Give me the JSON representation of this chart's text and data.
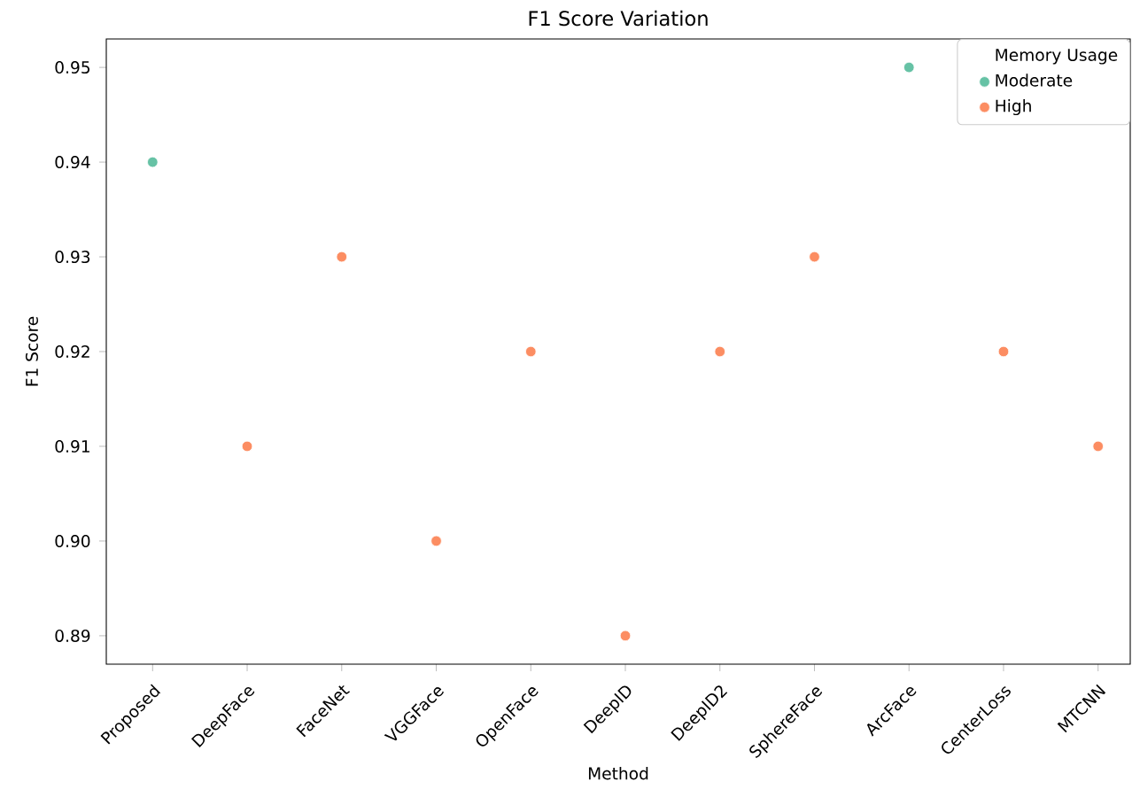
{
  "chart_data": {
    "type": "scatter",
    "title": "F1 Score Variation",
    "xlabel": "Method",
    "ylabel": "F1 Score",
    "legend_title": "Memory Usage",
    "categories": [
      "Proposed",
      "DeepFace",
      "FaceNet",
      "VGGFace",
      "OpenFace",
      "DeepID",
      "DeepID2",
      "SphereFace",
      "ArcFace",
      "CenterLoss",
      "MTCNN"
    ],
    "series": [
      {
        "name": "Moderate",
        "color": "#66c2a5",
        "values": [
          0.94,
          null,
          null,
          null,
          null,
          null,
          null,
          null,
          0.95,
          null,
          null
        ]
      },
      {
        "name": "High",
        "color": "#fc8d62",
        "values": [
          null,
          0.91,
          0.93,
          0.9,
          0.92,
          0.89,
          0.92,
          0.93,
          null,
          0.92,
          0.91
        ]
      }
    ],
    "ylim": [
      0.887,
      0.953
    ],
    "yticks": [
      {
        "value": 0.89,
        "label": "0.89"
      },
      {
        "value": 0.9,
        "label": "0.90"
      },
      {
        "value": 0.91,
        "label": "0.91"
      },
      {
        "value": 0.92,
        "label": "0.92"
      },
      {
        "value": 0.93,
        "label": "0.93"
      },
      {
        "value": 0.94,
        "label": "0.94"
      },
      {
        "value": 0.95,
        "label": "0.95"
      }
    ],
    "marker": "circle",
    "legend": "top right",
    "grid": false
  }
}
